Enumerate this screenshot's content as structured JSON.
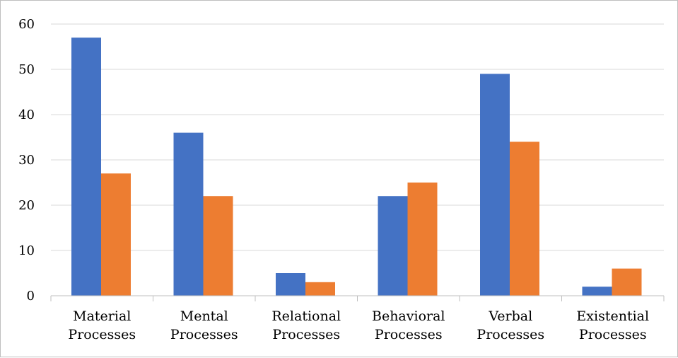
{
  "chart_data": {
    "type": "bar",
    "title": "",
    "xlabel": "",
    "ylabel": "",
    "categories": [
      [
        "Material",
        "Processes"
      ],
      [
        "Mental",
        "Processes"
      ],
      [
        "Relational",
        "Processes"
      ],
      [
        "Behavioral",
        "Processes"
      ],
      [
        "Verbal",
        "Processes"
      ],
      [
        "Existential",
        "Processes"
      ]
    ],
    "series": [
      {
        "values": [
          57,
          36,
          5,
          22,
          49,
          2
        ],
        "color": "#4472c4"
      },
      {
        "values": [
          27,
          22,
          3,
          25,
          34,
          6
        ],
        "color": "#ed7d31"
      }
    ],
    "ylim": [
      0,
      60
    ],
    "yticks": [
      0,
      10,
      20,
      30,
      40,
      50,
      60
    ],
    "grid": true,
    "legend": "none"
  }
}
